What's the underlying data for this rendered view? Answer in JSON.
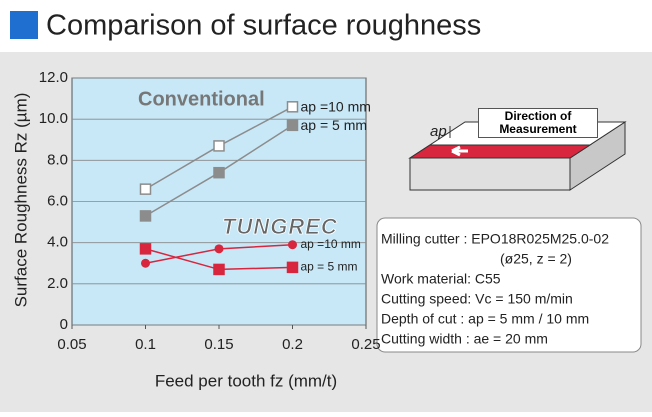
{
  "title": "Comparison of surface roughness",
  "chart_data": {
    "type": "line",
    "x": [
      0.1,
      0.15,
      0.2
    ],
    "xlim": [
      0.05,
      0.25
    ],
    "xticks": [
      0.05,
      0.1,
      0.15,
      0.2,
      0.25
    ],
    "ylim": [
      0,
      12
    ],
    "yticks": [
      0,
      {
        "value": 2,
        "label": "2.0"
      },
      {
        "value": 4,
        "label": "4.0"
      },
      {
        "value": 6,
        "label": "6.0"
      },
      {
        "value": 8,
        "label": "8.0"
      },
      {
        "value": 10,
        "label": "10.0"
      },
      {
        "value": 12,
        "label": "12.0"
      }
    ],
    "x_label": "Feed per tooth  fz (mm/t)",
    "y_label": "Surface Roughness Rz (µm)",
    "groups": [
      "Conventional",
      "TUNGREC"
    ],
    "series": [
      {
        "name": "ap =10 mm",
        "group": 0,
        "color": "#8c8c8c",
        "marker": "square-open",
        "values": [
          6.6,
          8.7,
          10.6
        ]
      },
      {
        "name": "ap = 5 mm",
        "group": 0,
        "color": "#8c8c8c",
        "marker": "square",
        "values": [
          5.3,
          7.4,
          9.7
        ]
      },
      {
        "name": "ap =10 mm",
        "group": 1,
        "color": "#d7263d",
        "marker": "circle",
        "values": [
          3.0,
          3.7,
          3.9
        ]
      },
      {
        "name": "ap = 5 mm",
        "group": 1,
        "color": "#d7263d",
        "marker": "square",
        "values": [
          3.7,
          2.7,
          2.8
        ]
      }
    ],
    "plot_color": "#c8e8f8",
    "conditions": [
      "Milling cutter : EPO18R025M25.0-02",
      "(ø25, z = 2)",
      "Work material: C55",
      "Cutting speed: Vc = 150 m/min",
      "Depth of cut : ap = 5 mm / 10 mm",
      "Cutting width : ae = 20 mm"
    ],
    "diagram": {
      "label": "Direction of Measurement",
      "depth": "ap"
    }
  }
}
